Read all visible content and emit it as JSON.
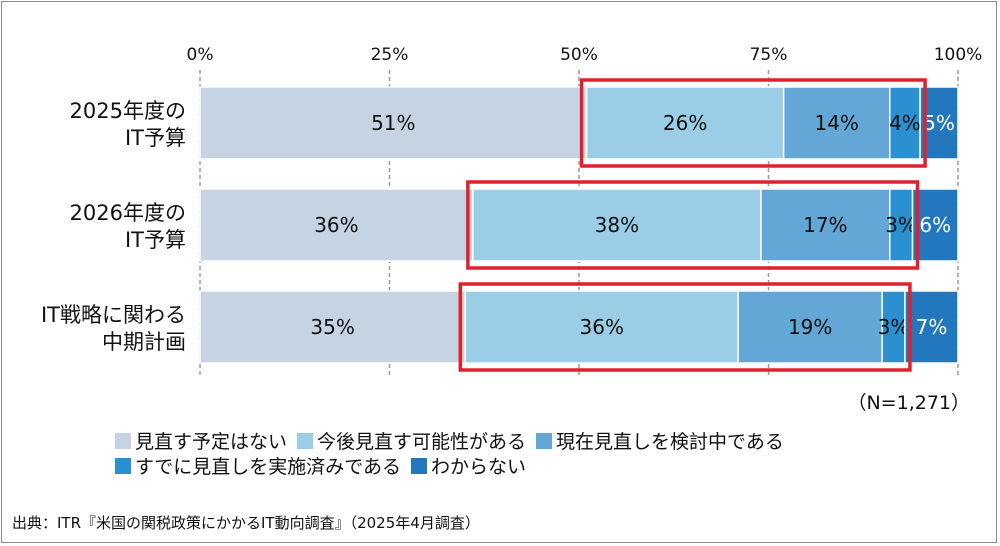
{
  "chart_data": {
    "type": "bar",
    "orientation": "horizontal",
    "stacked": true,
    "categories": [
      [
        "2025年度の",
        "IT予算"
      ],
      [
        "2026年度の",
        "IT予算"
      ],
      [
        "IT戦略に関わる",
        "中期計画"
      ]
    ],
    "xlim": [
      0,
      100
    ],
    "xticks": [
      "0%",
      "25%",
      "50%",
      "75%",
      "100%"
    ],
    "grid": true,
    "series": [
      {
        "name": "見直す予定はない",
        "color": "#c5d3e2",
        "values": [
          51,
          36,
          35
        ],
        "labels": [
          "51%",
          "36%",
          "35%"
        ]
      },
      {
        "name": "今後見直す可能性がある",
        "color": "#9ccde6",
        "values": [
          26,
          38,
          36
        ],
        "labels": [
          "26%",
          "38%",
          "36%"
        ]
      },
      {
        "name": "現在見直しを検討中である",
        "color": "#63a7d7",
        "values": [
          14,
          17,
          19
        ],
        "labels": [
          "14%",
          "17%",
          "19%"
        ]
      },
      {
        "name": "すでに見直しを実施済みである",
        "color": "#2b90cf",
        "values": [
          4,
          3,
          3
        ],
        "labels": [
          "4%",
          "3%",
          "3%"
        ]
      },
      {
        "name": "わからない",
        "color": "#2378bd",
        "values": [
          5,
          6,
          7
        ],
        "labels": [
          "5%",
          "6%",
          "7%"
        ]
      }
    ],
    "highlight": {
      "color": "#e0202e",
      "series_range": [
        1,
        3
      ]
    },
    "legend_position": "bottom"
  },
  "note": "（N=1,271）",
  "source": "出典：ITR『米国の関税政策にかかるIT動向調査』（2025年4月調査）"
}
